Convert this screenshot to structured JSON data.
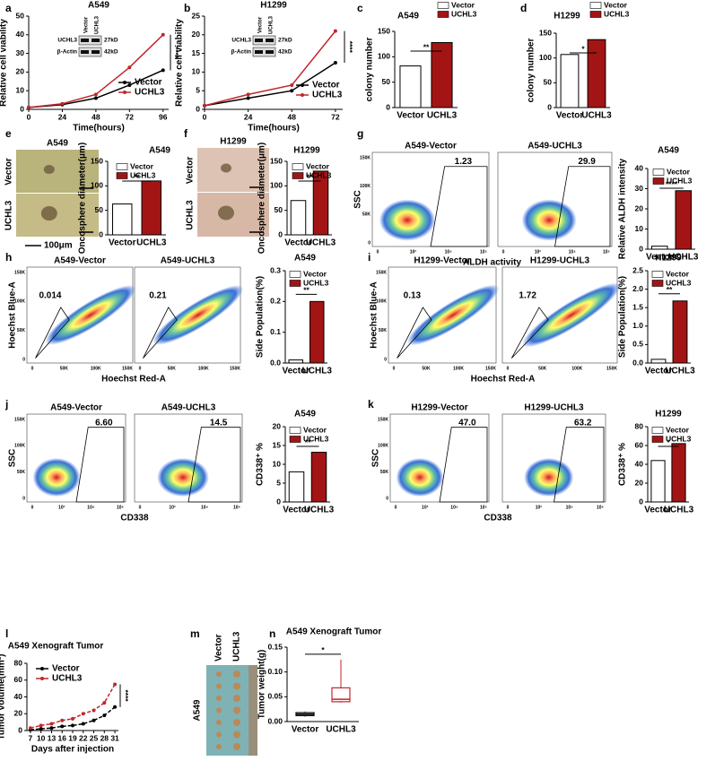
{
  "chart_data": [
    {
      "type": "line",
      "label": "a",
      "title": "A549",
      "xlabel": "Time(hours)",
      "ylabel": "Relative cell viability",
      "x": [
        0,
        24,
        48,
        72,
        96
      ],
      "xlim": [
        0,
        100
      ],
      "xticks": [
        0,
        24,
        48,
        72,
        96
      ],
      "ylim": [
        0,
        50
      ],
      "yticks": [
        0,
        10,
        20,
        30,
        40,
        50
      ],
      "series": [
        {
          "name": "Vector",
          "color": "#000000",
          "values": [
            1,
            2.5,
            6,
            13,
            21
          ]
        },
        {
          "name": "UCHL3",
          "color": "#c0272d",
          "values": [
            1,
            3,
            8,
            22.5,
            40
          ]
        }
      ],
      "annotation": "****",
      "inset": {
        "lanes": [
          "Vector",
          "UCHL3"
        ],
        "rows": [
          "UCHL3",
          "β-Actin"
        ],
        "sizes": [
          "27kD",
          "42kD"
        ]
      }
    },
    {
      "type": "line",
      "label": "b",
      "title": "H1299",
      "xlabel": "Time(hours)",
      "ylabel": "Relative cell viability",
      "x": [
        0,
        24,
        48,
        72
      ],
      "xlim": [
        0,
        76
      ],
      "xticks": [
        0,
        24,
        48,
        72
      ],
      "ylim": [
        0,
        25
      ],
      "yticks": [
        0,
        5,
        10,
        15,
        20,
        25
      ],
      "series": [
        {
          "name": "Vector",
          "color": "#000000",
          "values": [
            1,
            3,
            5,
            12.5
          ]
        },
        {
          "name": "UCHL3",
          "color": "#c0272d",
          "values": [
            1,
            4,
            6.5,
            21
          ]
        }
      ],
      "annotation": "****",
      "inset": {
        "lanes": [
          "Vector",
          "UCHL3"
        ],
        "rows": [
          "UCHL3",
          "β-Actin"
        ],
        "sizes": [
          "27kD",
          "42kD"
        ]
      }
    },
    {
      "type": "bar",
      "label": "c",
      "title": "A549",
      "ylabel": "colony number",
      "categories": [
        "Vector",
        "UCHL3"
      ],
      "values": [
        82,
        128
      ],
      "colors": [
        "#ffffff",
        "#a31515"
      ],
      "ylim": [
        0,
        150
      ],
      "yticks": [
        0,
        50,
        100,
        150
      ],
      "annotation": "**"
    },
    {
      "type": "bar",
      "label": "d",
      "title": "H1299",
      "ylabel": "colony number",
      "categories": [
        "Vector",
        "UCHL3"
      ],
      "values": [
        107,
        137
      ],
      "colors": [
        "#ffffff",
        "#a31515"
      ],
      "ylim": [
        0,
        150
      ],
      "yticks": [
        0,
        50,
        100,
        150
      ],
      "annotation": "*"
    },
    {
      "type": "image",
      "label": "e",
      "title": "A549",
      "rows": [
        "Vector",
        "UCHL3"
      ],
      "scale": "100μm"
    },
    {
      "type": "bar",
      "title": "A549",
      "ylabel": "Oncosphere diameter(μm)",
      "categories": [
        "Vector",
        "UCHL3"
      ],
      "values": [
        63,
        110
      ],
      "colors": [
        "#ffffff",
        "#a31515"
      ],
      "ylim": [
        0,
        150
      ],
      "yticks": [
        0,
        50,
        100,
        150
      ],
      "annotation": "**"
    },
    {
      "type": "image",
      "label": "f",
      "title": "H1299",
      "rows": [
        "Vector",
        "UCHL3"
      ]
    },
    {
      "type": "bar",
      "title": "H1299",
      "ylabel": "Oncosphere diameter(μm)",
      "categories": [
        "Vector",
        "UCHL3"
      ],
      "values": [
        70,
        130
      ],
      "colors": [
        "#ffffff",
        "#a31515"
      ],
      "ylim": [
        0,
        150
      ],
      "yticks": [
        0,
        50,
        100,
        150
      ],
      "annotation": "**"
    },
    {
      "type": "flow",
      "label": "g",
      "ylabel": "SSC",
      "xlabel": "ALDH activity",
      "plots": [
        {
          "title": "A549-Vector",
          "gate": 1.23
        },
        {
          "title": "A549-UCHL3",
          "gate": 29.9
        }
      ],
      "ytick_labels": [
        "0",
        "50K",
        "100K",
        "150K"
      ],
      "xtick_labels": [
        "0",
        "10³",
        "10⁴",
        "10⁵"
      ]
    },
    {
      "type": "bar",
      "title": "A549",
      "ylabel": "Relative ALDH intensity",
      "categories": [
        "Vector",
        "UCHL3"
      ],
      "values": [
        1.5,
        29
      ],
      "colors": [
        "#ffffff",
        "#a31515"
      ],
      "ylim": [
        0,
        40
      ],
      "yticks": [
        0,
        10,
        20,
        30,
        40
      ],
      "annotation": "****"
    },
    {
      "type": "flow",
      "label": "h",
      "ylabel": "Hoechst Blue-A",
      "xlabel": "Hoechst Red-A",
      "plots": [
        {
          "title": "A549-Vector",
          "gate": 0.014
        },
        {
          "title": "A549-UCHL3",
          "gate": 0.21
        }
      ],
      "ytick_labels": [
        "0",
        "50K",
        "100K",
        "150K"
      ],
      "xtick_labels": [
        "0",
        "50K",
        "100K",
        "150K"
      ]
    },
    {
      "type": "bar",
      "title": "A549",
      "ylabel": "Side Population(%)",
      "categories": [
        "Vector",
        "UCHL3"
      ],
      "values": [
        0.01,
        0.2
      ],
      "colors": [
        "#ffffff",
        "#a31515"
      ],
      "ylim": [
        0,
        0.3
      ],
      "yticks": [
        {
          "value": 0,
          "label": "0.0"
        },
        0.1,
        0.2,
        0.3
      ],
      "annotation": "**"
    },
    {
      "type": "flow",
      "label": "i",
      "ylabel": "Hoechst Blue-A",
      "xlabel": "Hoechst Red-A",
      "plots": [
        {
          "title": "H1299-Vector",
          "gate": 0.13
        },
        {
          "title": "H1299-UCHL3",
          "gate": 1.72
        }
      ],
      "ytick_labels": [
        "0",
        "50K",
        "100K",
        "150K"
      ],
      "xtick_labels": [
        "0",
        "50K",
        "100K",
        "150K"
      ]
    },
    {
      "type": "bar",
      "title": "H1299",
      "ylabel": "Side Population(%)",
      "categories": [
        "Vector",
        "UCHL3"
      ],
      "values": [
        0.1,
        1.68
      ],
      "colors": [
        "#ffffff",
        "#a31515"
      ],
      "ylim": [
        0,
        2.5
      ],
      "yticks": [
        {
          "value": 0,
          "label": "0.0"
        },
        0.5,
        {
          "value": 1,
          "label": "1.0"
        },
        1.5,
        {
          "value": 2,
          "label": "2.0"
        },
        2.5
      ],
      "annotation": "**"
    },
    {
      "type": "flow",
      "label": "j",
      "ylabel": "SSC",
      "xlabel": "CD338",
      "plots": [
        {
          "title": "A549-Vector",
          "gate": {
            "value": 6.6,
            "label": "6.60"
          }
        },
        {
          "title": "A549-UCHL3",
          "gate": 14.5
        }
      ],
      "ytick_labels": [
        "0",
        "50K",
        "100K",
        "150K"
      ],
      "xtick_labels": [
        "0",
        "10³",
        "10⁴",
        "10⁵"
      ]
    },
    {
      "type": "bar",
      "title": "A549",
      "ylabel": "CD338⁺ %",
      "categories": [
        "Vector",
        "UCHL3"
      ],
      "values": [
        8,
        13.2
      ],
      "colors": [
        "#ffffff",
        "#a31515"
      ],
      "ylim": [
        0,
        20
      ],
      "yticks": [
        0,
        5,
        10,
        15,
        20
      ],
      "annotation": "**"
    },
    {
      "type": "flow",
      "label": "k",
      "ylabel": "SSC",
      "xlabel": "CD338",
      "plots": [
        {
          "title": "H1299-Vector",
          "gate": {
            "value": 47,
            "label": "47.0"
          }
        },
        {
          "title": "H1299-UCHL3",
          "gate": 63.2
        }
      ],
      "ytick_labels": [
        "0",
        "50K",
        "100K",
        "150K"
      ],
      "xtick_labels": [
        "0",
        "10³",
        "10⁴",
        "10⁵"
      ]
    },
    {
      "type": "bar",
      "title": "H1299",
      "ylabel": "CD338⁺ %",
      "categories": [
        "Vector",
        "UCHL3"
      ],
      "values": [
        44,
        62
      ],
      "colors": [
        "#ffffff",
        "#a31515"
      ],
      "ylim": [
        0,
        80
      ],
      "yticks": [
        0,
        20,
        40,
        60,
        80
      ],
      "annotation": "*"
    },
    {
      "type": "line",
      "label": "l",
      "title": "A549 Xenograft Tumor",
      "xlabel": "Days after injection",
      "ylabel": "Tumor volume(mm³)",
      "x": [
        7,
        10,
        13,
        16,
        19,
        22,
        25,
        28,
        31
      ],
      "xlim": [
        6,
        32
      ],
      "xticks": [
        7,
        10,
        13,
        16,
        19,
        22,
        25,
        28,
        31
      ],
      "ylim": [
        0,
        80
      ],
      "yticks": [
        0,
        20,
        40,
        60,
        80
      ],
      "dashed": true,
      "series": [
        {
          "name": "Vector",
          "color": "#000000",
          "values": [
            1,
            2,
            3,
            5,
            6,
            8,
            12,
            18,
            28
          ]
        },
        {
          "name": "UCHL3",
          "color": "#c0272d",
          "values": [
            3,
            6,
            8,
            12,
            14,
            20,
            24,
            33,
            55
          ]
        }
      ],
      "annotation": "****"
    },
    {
      "type": "image",
      "label": "m",
      "columns": [
        "Vector",
        "UCHL3"
      ],
      "rows": [
        "A549"
      ]
    },
    {
      "type": "box",
      "label": "n",
      "title": "A549 Xenograft Tumor",
      "ylabel": "Tumor weight(g)",
      "categories": [
        "Vector",
        "UCHL3"
      ],
      "colors": [
        "#000000",
        "#c0272d"
      ],
      "boxes": [
        {
          "min": 0.01,
          "q1": 0.012,
          "median": 0.015,
          "q3": 0.018,
          "max": 0.02
        },
        {
          "min": 0.038,
          "q1": 0.04,
          "median": 0.045,
          "q3": 0.068,
          "max": 0.125
        }
      ],
      "ylim": [
        0,
        0.15
      ],
      "yticks": [
        {
          "value": 0,
          "label": "0.00"
        },
        0.05,
        {
          "value": 0.1,
          "label": "0.10"
        },
        0.15
      ],
      "annotation": "*"
    }
  ]
}
